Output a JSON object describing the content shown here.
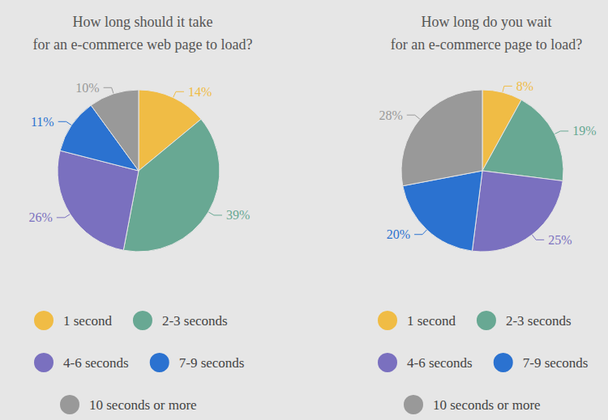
{
  "chart_data": [
    {
      "type": "pie",
      "title": "How long should it take\nfor an e-commerce web page to load?",
      "categories": [
        "1 second",
        "2-3 seconds",
        "4-6 seconds",
        "7-9 seconds",
        "10 seconds or more"
      ],
      "values": [
        14,
        39,
        26,
        11,
        10
      ],
      "value_labels": [
        "14%",
        "39%",
        "26%",
        "11%",
        "10%"
      ],
      "colors": [
        "#f0bc45",
        "#68a893",
        "#7a70bf",
        "#2b72d0",
        "#999999"
      ],
      "data_labels": true,
      "legend": "bottom"
    },
    {
      "type": "pie",
      "title": "How long do you wait\nfor an e-commerce page to load?",
      "categories": [
        "1 second",
        "2-3 seconds",
        "4-6 seconds",
        "7-9 seconds",
        "10 seconds or more"
      ],
      "values": [
        8,
        19,
        25,
        20,
        28
      ],
      "value_labels": [
        "8%",
        "19%",
        "25%",
        "20%",
        "28%"
      ],
      "colors": [
        "#f0bc45",
        "#68a893",
        "#7a70bf",
        "#2b72d0",
        "#999999"
      ],
      "data_labels": true,
      "legend": "bottom"
    }
  ]
}
